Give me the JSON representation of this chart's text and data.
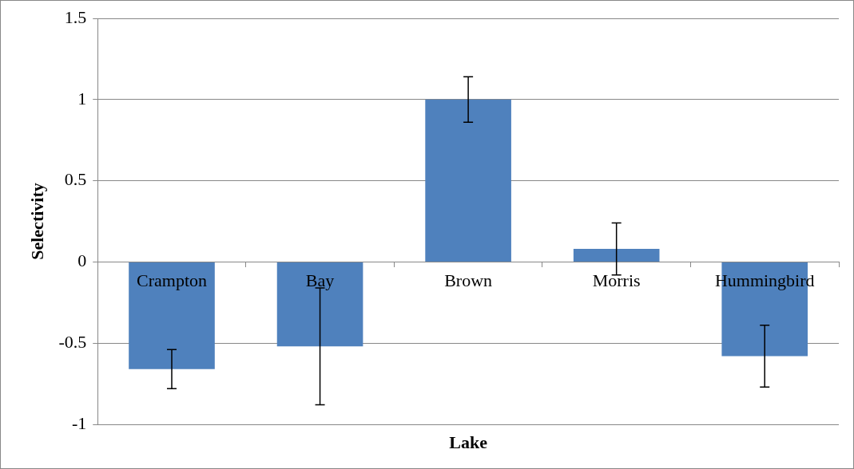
{
  "chart_data": {
    "type": "bar",
    "xlabel": "Lake",
    "ylabel": "Selectivity",
    "categories": [
      "Crampton",
      "Bay",
      "Brown",
      "Morris",
      "Hummingbird"
    ],
    "values": [
      -0.66,
      -0.52,
      1.0,
      0.08,
      -0.58
    ],
    "errors": [
      0.12,
      0.36,
      0.14,
      0.16,
      0.19
    ],
    "color": "#4f81bd",
    "ylim": [
      -1,
      1.5
    ],
    "yticks": [
      -1,
      -0.5,
      0,
      0.5,
      1,
      1.5
    ],
    "grid": "y",
    "legend": false
  }
}
